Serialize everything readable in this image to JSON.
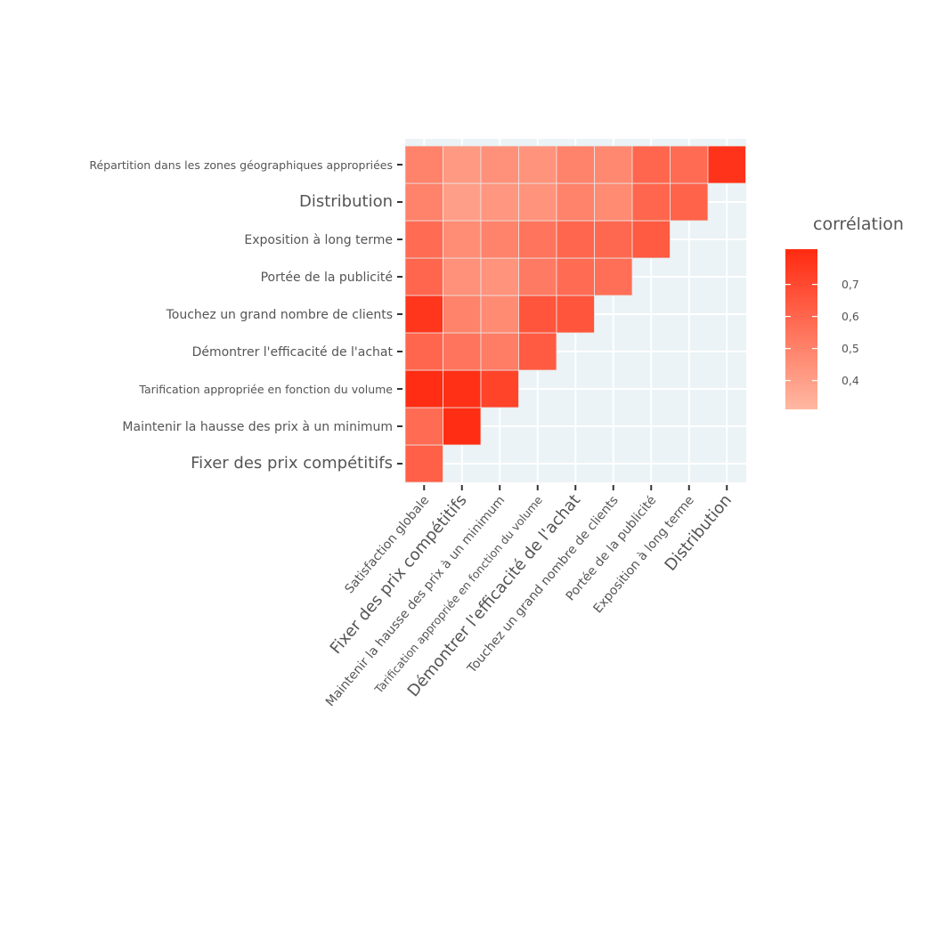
{
  "chart_data": {
    "type": "heatmap",
    "title": "",
    "x_categories": [
      "Satisfaction globale",
      "Fixer des prix compétitifs",
      "Maintenir la hausse des prix à un minimum",
      "Tarification appropriée en fonction du volume",
      "Démontrer l'efficacité de l'achat",
      "Touchez un grand nombre de clients",
      "Portée de la publicité",
      "Exposition à long terme",
      "Distribution"
    ],
    "y_categories": [
      "Fixer des prix compétitifs",
      "Maintenir la hausse des prix à un minimum",
      "Tarification appropriée en fonction du volume",
      "Démontrer l'efficacité de l'achat",
      "Touchez un grand nombre de clients",
      "Portée de la publicité",
      "Exposition à long terme",
      "Distribution",
      "Répartition dans les zones géographiques appropriées"
    ],
    "matrix": [
      [
        0.62
      ],
      [
        0.58,
        0.8
      ],
      [
        0.8,
        0.79,
        0.72
      ],
      [
        0.6,
        0.55,
        0.52,
        0.64
      ],
      [
        0.77,
        0.5,
        0.47,
        0.66,
        0.66
      ],
      [
        0.6,
        0.45,
        0.44,
        0.53,
        0.58,
        0.57
      ],
      [
        0.58,
        0.46,
        0.5,
        0.55,
        0.6,
        0.59,
        0.64
      ],
      [
        0.5,
        0.4,
        0.43,
        0.44,
        0.5,
        0.47,
        0.6,
        0.61
      ],
      [
        0.5,
        0.42,
        0.45,
        0.44,
        0.5,
        0.48,
        0.6,
        0.58,
        0.78
      ]
    ],
    "legend": {
      "title": "corrélation",
      "ticks": [
        "0,4",
        "0,5",
        "0,6",
        "0,7"
      ],
      "tick_values": [
        0.4,
        0.5,
        0.6,
        0.7
      ],
      "range": [
        0.31,
        0.81
      ],
      "low_color": "#ffb8a2",
      "high_color": "#ff2a10"
    },
    "panel_background": "#ebf3f6",
    "grid": true
  }
}
